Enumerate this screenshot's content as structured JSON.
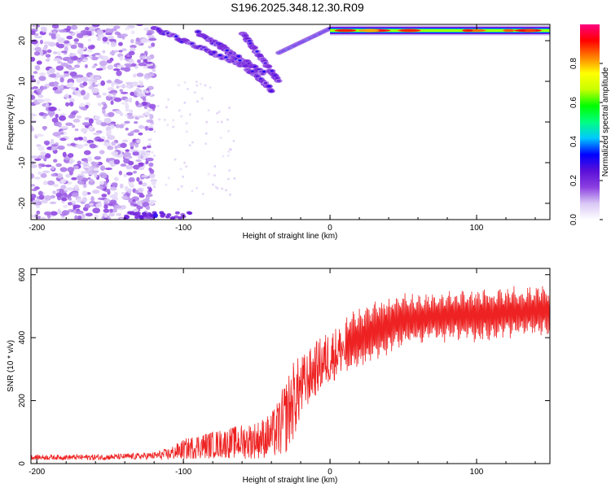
{
  "title": "S196.2025.348.12.30.R09",
  "chart_data": [
    {
      "type": "heatmap",
      "xlabel": "Height of straight line (km)",
      "ylabel": "Frequency (Hz)",
      "xlim": [
        -204,
        150
      ],
      "ylim": [
        -24,
        24
      ],
      "x_ticks": [
        -200,
        -100,
        0,
        100
      ],
      "y_ticks": [
        -20,
        -10,
        0,
        10,
        20
      ],
      "grid": false,
      "colorbar": {
        "label": "Normalized spectral amplitude",
        "range": [
          0,
          1
        ],
        "ticks": [
          "0.0",
          "0.2",
          "0.4",
          "0.6",
          "0.8"
        ],
        "colormap": [
          "#ffffff",
          "#d9c7f5",
          "#8b3fe0",
          "#5a10d8",
          "#0000ff",
          "#00c8ff",
          "#00ff80",
          "#00ff00",
          "#c8ff00",
          "#ffff00",
          "#ff8000",
          "#ff0000",
          "#ff0080"
        ]
      },
      "features": {
        "noise_region_x": [
          -204,
          -120
        ],
        "bottom_band_x": [
          -140,
          -95
        ],
        "bottom_band_y": -23,
        "descending_streaks": [
          {
            "x": [
              -120,
              -60
            ],
            "y": [
              23,
              14
            ]
          },
          {
            "x": [
              -90,
              -45
            ],
            "y": [
              22,
              12
            ]
          },
          {
            "x": [
              -60,
              -35
            ],
            "y": [
              22,
              10
            ]
          },
          {
            "x": [
              -75,
              -40
            ],
            "y": [
              19,
              8
            ]
          }
        ],
        "rising_arm": {
          "x": [
            -35,
            0
          ],
          "y": [
            17,
            23
          ]
        },
        "carrier_line": {
          "x": [
            0,
            150
          ],
          "y": 22.5,
          "peak_amplitude": 0.95
        }
      }
    },
    {
      "type": "line",
      "xlabel": "Height of straight line (km)",
      "ylabel": "SNR (10 * v/v)",
      "xlim": [
        -204,
        150
      ],
      "ylim": [
        0,
        620
      ],
      "x_ticks": [
        -200,
        -100,
        0,
        100
      ],
      "y_ticks": [
        0,
        200,
        400,
        600
      ],
      "grid": false,
      "color": "#ee2222",
      "series": [
        {
          "x": [
            -204,
            -180,
            -160,
            -140,
            -120,
            -110,
            -100,
            -90,
            -80,
            -70,
            -60,
            -50,
            -40,
            -35,
            -30,
            -25,
            -20,
            -15,
            -10,
            -5,
            0,
            10,
            20,
            30,
            40,
            50,
            60,
            70,
            80,
            90,
            100,
            110,
            120,
            130,
            140,
            150
          ],
          "y": [
            20,
            20,
            20,
            22,
            25,
            30,
            45,
            55,
            60,
            65,
            70,
            75,
            90,
            110,
            150,
            200,
            240,
            270,
            300,
            320,
            340,
            370,
            400,
            420,
            440,
            455,
            460,
            465,
            470,
            470,
            470,
            475,
            480,
            480,
            485,
            485
          ],
          "amplitude": [
            10,
            10,
            12,
            12,
            15,
            25,
            40,
            50,
            55,
            60,
            70,
            75,
            90,
            120,
            150,
            160,
            130,
            110,
            110,
            110,
            110,
            100,
            100,
            100,
            95,
            90,
            85,
            85,
            85,
            85,
            90,
            85,
            85,
            85,
            85,
            85
          ]
        }
      ]
    }
  ]
}
